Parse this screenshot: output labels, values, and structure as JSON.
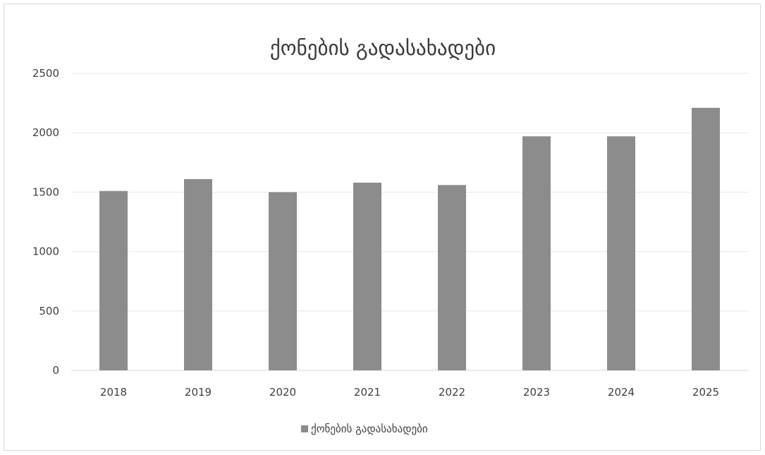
{
  "chart_data": {
    "type": "bar",
    "title": "ქონების გადასახადები",
    "categories": [
      "2018",
      "2019",
      "2020",
      "2021",
      "2022",
      "2023",
      "2024",
      "2025"
    ],
    "series": [
      {
        "name": "ქონების გადასახადები",
        "values": [
          1510,
          1610,
          1500,
          1580,
          1560,
          1970,
          1970,
          2210
        ],
        "color": "#8c8c8c"
      }
    ],
    "xlabel": "",
    "ylabel": "",
    "ylim": [
      0,
      2500
    ],
    "yticks": [
      0,
      500,
      1000,
      1500,
      2000,
      2500
    ],
    "grid": true,
    "legend_position": "bottom"
  }
}
